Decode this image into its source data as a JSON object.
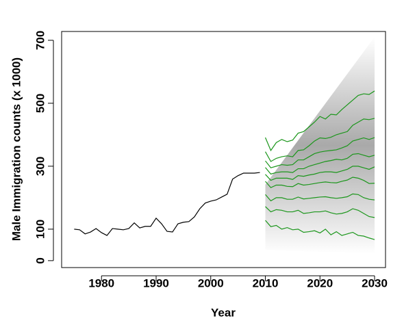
{
  "chart_data": {
    "type": "line",
    "xlabel": "Year",
    "ylabel": "Male Immigration counts (x 1000)",
    "xlim": [
      1972.7,
      2032
    ],
    "ylim": [
      -22,
      728
    ],
    "xticks": [
      1980,
      1990,
      2000,
      2010,
      2020,
      2030
    ],
    "yticks": [
      0,
      100,
      300,
      500,
      700
    ],
    "series": [
      {
        "color": "#000000",
        "x": [
          1975,
          1976,
          1977,
          1978,
          1979,
          1980,
          1981,
          1982,
          1983,
          1984,
          1985,
          1986,
          1987,
          1988,
          1989,
          1990,
          1991,
          1992,
          1993,
          1994,
          1995,
          1996,
          1997,
          1998,
          1999,
          2000,
          2001,
          2002,
          2003,
          2004,
          2005,
          2006,
          2007,
          2008,
          2009
        ],
        "values": [
          100,
          98,
          85,
          91,
          102,
          89,
          80,
          102,
          100,
          98,
          102,
          120,
          104,
          109,
          109,
          135,
          117,
          93,
          91,
          117,
          122,
          124,
          139,
          165,
          183,
          189,
          193,
          202,
          211,
          259,
          270,
          278,
          278,
          278,
          280
        ]
      },
      {
        "color": "#1a961a",
        "x": [
          2010,
          2011,
          2012,
          2013,
          2014,
          2015,
          2016,
          2017,
          2018,
          2019,
          2020,
          2021,
          2022,
          2023,
          2024,
          2025,
          2026,
          2027,
          2028,
          2029,
          2030
        ],
        "values": [
          391,
          350,
          375,
          385,
          378,
          383,
          405,
          410,
          425,
          440,
          458,
          450,
          465,
          463,
          480,
          495,
          510,
          525,
          530,
          528,
          539
        ]
      },
      {
        "color": "#1a961a",
        "x": [
          2010,
          2011,
          2012,
          2013,
          2014,
          2015,
          2016,
          2017,
          2018,
          2019,
          2020,
          2021,
          2022,
          2023,
          2024,
          2025,
          2026,
          2027,
          2028,
          2029,
          2030
        ],
        "values": [
          346,
          315,
          325,
          330,
          333,
          330,
          350,
          352,
          365,
          380,
          390,
          388,
          392,
          400,
          405,
          410,
          430,
          440,
          450,
          448,
          452
        ]
      },
      {
        "color": "#1a961a",
        "x": [
          2010,
          2011,
          2012,
          2013,
          2014,
          2015,
          2016,
          2017,
          2018,
          2019,
          2020,
          2021,
          2022,
          2023,
          2024,
          2025,
          2026,
          2027,
          2028,
          2029,
          2030
        ],
        "values": [
          317,
          295,
          300,
          305,
          303,
          305,
          320,
          320,
          330,
          340,
          345,
          348,
          350,
          352,
          358,
          365,
          380,
          385,
          390,
          385,
          391
        ]
      },
      {
        "color": "#1a961a",
        "x": [
          2010,
          2011,
          2012,
          2013,
          2014,
          2015,
          2016,
          2017,
          2018,
          2019,
          2020,
          2021,
          2022,
          2023,
          2024,
          2025,
          2026,
          2027,
          2028,
          2029,
          2030
        ],
        "values": [
          296,
          275,
          280,
          282,
          282,
          280,
          292,
          292,
          300,
          305,
          310,
          315,
          318,
          322,
          320,
          325,
          338,
          340,
          335,
          330,
          335
        ]
      },
      {
        "color": "#1a961a",
        "x": [
          2010,
          2011,
          2012,
          2013,
          2014,
          2015,
          2016,
          2017,
          2018,
          2019,
          2020,
          2021,
          2022,
          2023,
          2024,
          2025,
          2026,
          2027,
          2028,
          2029,
          2030
        ],
        "values": [
          274,
          255,
          262,
          262,
          262,
          258,
          270,
          268,
          272,
          275,
          280,
          282,
          282,
          280,
          285,
          290,
          300,
          300,
          295,
          290,
          298
        ]
      },
      {
        "color": "#1a961a",
        "x": [
          2010,
          2011,
          2012,
          2013,
          2014,
          2015,
          2016,
          2017,
          2018,
          2019,
          2020,
          2021,
          2022,
          2023,
          2024,
          2025,
          2026,
          2027,
          2028,
          2029,
          2030
        ],
        "values": [
          252,
          232,
          240,
          240,
          236,
          235,
          245,
          240,
          242,
          245,
          248,
          250,
          248,
          247,
          252,
          256,
          265,
          262,
          255,
          245,
          246
        ]
      },
      {
        "color": "#1a961a",
        "x": [
          2010,
          2011,
          2012,
          2013,
          2014,
          2015,
          2016,
          2017,
          2018,
          2019,
          2020,
          2021,
          2022,
          2023,
          2024,
          2025,
          2026,
          2027,
          2028,
          2029,
          2030
        ],
        "values": [
          210,
          190,
          200,
          200,
          195,
          195,
          202,
          196,
          198,
          200,
          202,
          203,
          200,
          198,
          200,
          203,
          212,
          210,
          200,
          195,
          193
        ]
      },
      {
        "color": "#1a961a",
        "x": [
          2010,
          2011,
          2012,
          2013,
          2014,
          2015,
          2016,
          2017,
          2018,
          2019,
          2020,
          2021,
          2022,
          2023,
          2024,
          2025,
          2026,
          2027,
          2028,
          2029,
          2030
        ],
        "values": [
          172,
          155,
          162,
          160,
          155,
          155,
          160,
          150,
          152,
          155,
          155,
          158,
          152,
          148,
          150,
          155,
          165,
          160,
          150,
          140,
          137
        ]
      },
      {
        "color": "#1a961a",
        "x": [
          2010,
          2011,
          2012,
          2013,
          2014,
          2015,
          2016,
          2017,
          2018,
          2019,
          2020,
          2021,
          2022,
          2023,
          2024,
          2025,
          2026,
          2027,
          2028,
          2029,
          2030
        ],
        "values": [
          128,
          108,
          112,
          100,
          105,
          98,
          100,
          90,
          92,
          95,
          88,
          100,
          82,
          92,
          80,
          85,
          90,
          80,
          78,
          72,
          67
        ]
      }
    ]
  }
}
